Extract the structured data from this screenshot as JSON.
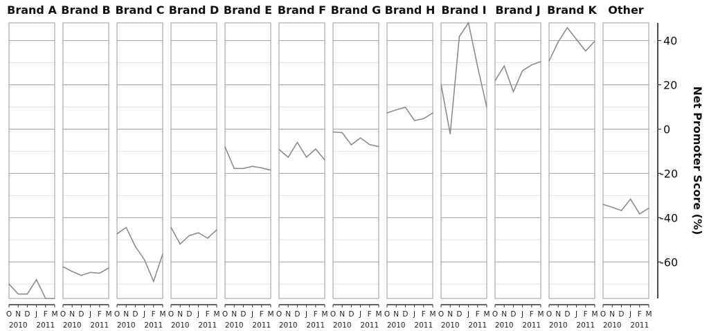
{
  "chart_data": {
    "type": "line",
    "layout": "small-multiples",
    "ylabel": "Net Promoter Score (%)",
    "ylim": [
      -76.5,
      48
    ],
    "yticks": [
      40,
      20,
      0,
      -20,
      -40,
      -60
    ],
    "grid": true,
    "y_axis_position": "right",
    "x": [
      "O",
      "N",
      "D",
      "J",
      "F",
      "M"
    ],
    "x_years": [
      "2010",
      "2011"
    ],
    "line_color": "#8c8c8c",
    "panels": [
      {
        "name": "Brand A",
        "values": [
          -70,
          -74.5,
          -74.5,
          -68,
          -76.5,
          -76.5
        ]
      },
      {
        "name": "Brand B",
        "values": [
          -62.2,
          -64.3,
          -66.1,
          -64.7,
          -65.1,
          -62.7
        ]
      },
      {
        "name": "Brand C",
        "values": [
          -47.3,
          -44.4,
          -53,
          -59,
          -68.8,
          -56.4
        ]
      },
      {
        "name": "Brand D",
        "values": [
          -44.4,
          -51.9,
          -48.1,
          -46.8,
          -49.3,
          -45.5
        ]
      },
      {
        "name": "Brand E",
        "values": [
          -8,
          -17.8,
          -17.8,
          -16.8,
          -17.5,
          -18.6
        ]
      },
      {
        "name": "Brand F",
        "values": [
          -9.2,
          -12.7,
          -6,
          -12.7,
          -9,
          -13.9
        ]
      },
      {
        "name": "Brand G",
        "values": [
          -1.3,
          -1.6,
          -7.1,
          -4,
          -7,
          -7.9
        ]
      },
      {
        "name": "Brand H",
        "values": [
          7.3,
          8.7,
          9.9,
          3.9,
          4.7,
          7.3
        ]
      },
      {
        "name": "Brand I",
        "values": [
          20.2,
          -2.1,
          41.8,
          48,
          28.2,
          9.9
        ]
      },
      {
        "name": "Brand J",
        "values": [
          21.9,
          28.5,
          16.9,
          26.4,
          29,
          30.5
        ]
      },
      {
        "name": "Brand K",
        "values": [
          30.8,
          39.4,
          45.8,
          40.5,
          35.3,
          39.7
        ]
      },
      {
        "name": "Other",
        "values": [
          -34,
          -35.3,
          -36.8,
          -31.6,
          -38.3,
          -35.7
        ]
      }
    ]
  }
}
